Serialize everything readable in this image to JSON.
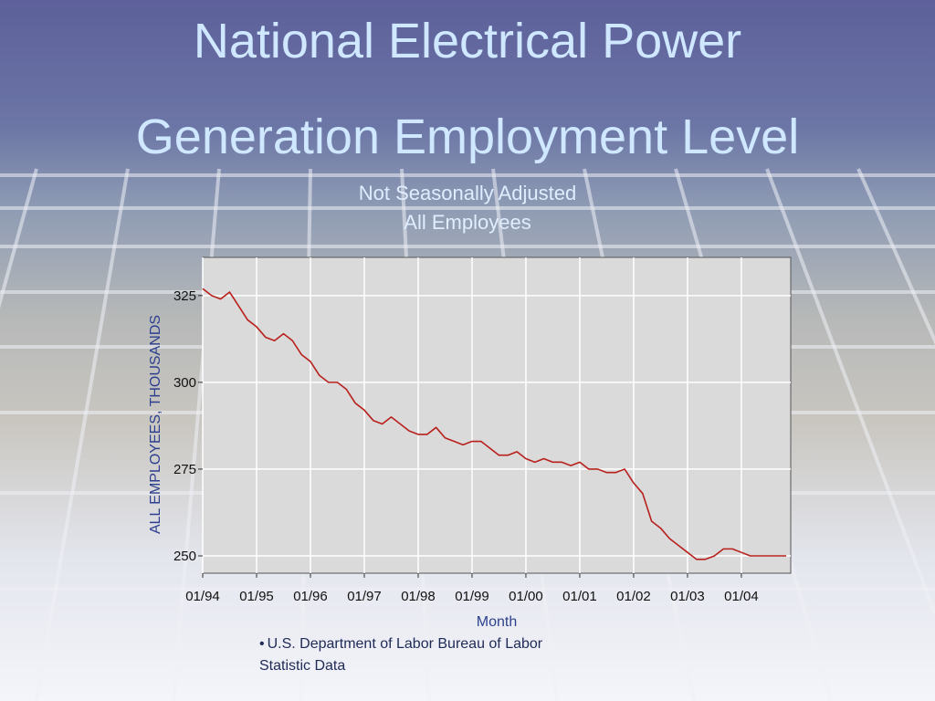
{
  "slide": {
    "title_line1": "National Electrical Power",
    "title_line2": "Generation Employment Level",
    "subtitle_line1": "Not Seasonally Adjusted",
    "subtitle_line2": "All Employees",
    "source_line1": "U.S. Department of Labor Bureau of Labor",
    "source_line2": "Statistic Data",
    "source_bullet": "•"
  },
  "colors": {
    "title": "#cfe8ff",
    "line": "#b8201c",
    "plot_bg": "#dadada",
    "axis_label": "#2b3f8e"
  },
  "chart_data": {
    "type": "line",
    "title": "",
    "xlabel": "Month",
    "ylabel": "ALL EMPLOYEES, THOUSANDS",
    "x_ticks": [
      "01/94",
      "01/95",
      "01/96",
      "01/97",
      "01/98",
      "01/99",
      "01/00",
      "01/01",
      "01/02",
      "01/03",
      "01/04"
    ],
    "y_ticks": [
      250,
      275,
      300,
      325
    ],
    "xlim": [
      0,
      131
    ],
    "ylim": [
      245,
      336
    ],
    "grid": true,
    "series": [
      {
        "x": [
          0,
          2,
          4,
          6,
          8,
          10,
          12,
          14,
          16,
          18,
          20,
          22,
          24,
          26,
          28,
          30,
          32,
          34,
          36,
          38,
          40,
          42,
          44,
          46,
          48,
          50,
          52,
          54,
          56,
          58,
          60,
          62,
          64,
          66,
          68,
          70,
          72,
          74,
          76,
          78,
          80,
          82,
          84,
          86,
          88,
          90,
          92,
          94,
          96,
          98,
          100,
          102,
          104,
          106,
          108,
          110,
          112,
          114,
          116,
          118,
          120,
          122,
          124,
          126,
          128,
          130
        ],
        "values": [
          327,
          325,
          324,
          326,
          322,
          318,
          316,
          313,
          312,
          314,
          312,
          308,
          306,
          302,
          300,
          300,
          298,
          294,
          292,
          289,
          288,
          290,
          288,
          286,
          285,
          285,
          287,
          284,
          283,
          282,
          283,
          283,
          281,
          279,
          279,
          280,
          278,
          277,
          278,
          277,
          277,
          276,
          277,
          275,
          275,
          274,
          274,
          275,
          271,
          268,
          260,
          258,
          255,
          253,
          251,
          249,
          249,
          250,
          252,
          252,
          251,
          250,
          250,
          250,
          250,
          250
        ]
      }
    ]
  }
}
